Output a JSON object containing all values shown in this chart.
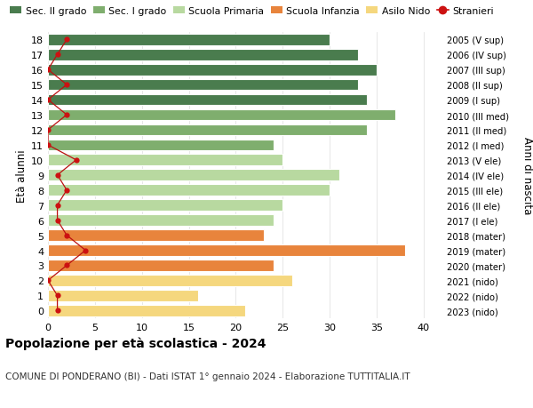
{
  "ages": [
    18,
    17,
    16,
    15,
    14,
    13,
    12,
    11,
    10,
    9,
    8,
    7,
    6,
    5,
    4,
    3,
    2,
    1,
    0
  ],
  "right_labels": [
    "2005 (V sup)",
    "2006 (IV sup)",
    "2007 (III sup)",
    "2008 (II sup)",
    "2009 (I sup)",
    "2010 (III med)",
    "2011 (II med)",
    "2012 (I med)",
    "2013 (V ele)",
    "2014 (IV ele)",
    "2015 (III ele)",
    "2016 (II ele)",
    "2017 (I ele)",
    "2018 (mater)",
    "2019 (mater)",
    "2020 (mater)",
    "2021 (nido)",
    "2022 (nido)",
    "2023 (nido)"
  ],
  "bar_values": [
    30,
    33,
    35,
    33,
    34,
    37,
    34,
    24,
    25,
    31,
    30,
    25,
    24,
    23,
    38,
    24,
    26,
    16,
    21
  ],
  "bar_colors": [
    "#4a7c4e",
    "#4a7c4e",
    "#4a7c4e",
    "#4a7c4e",
    "#4a7c4e",
    "#7fae6e",
    "#7fae6e",
    "#7fae6e",
    "#b8d9a0",
    "#b8d9a0",
    "#b8d9a0",
    "#b8d9a0",
    "#b8d9a0",
    "#e8843c",
    "#e8843c",
    "#e8843c",
    "#f5d77e",
    "#f5d77e",
    "#f5d77e"
  ],
  "stranieri_values": [
    2,
    1,
    0,
    2,
    0,
    2,
    0,
    0,
    3,
    1,
    2,
    1,
    1,
    2,
    4,
    2,
    0,
    1,
    1
  ],
  "ylabel_left": "Età alunni",
  "ylabel_right": "Anni di nascita",
  "xlim": [
    0,
    42
  ],
  "xticks": [
    0,
    5,
    10,
    15,
    20,
    25,
    30,
    35,
    40
  ],
  "title": "Popolazione per età scolastica - 2024",
  "subtitle": "COMUNE DI PONDERANO (BI) - Dati ISTAT 1° gennaio 2024 - Elaborazione TUTTITALIA.IT",
  "legend_items": [
    {
      "label": "Sec. II grado",
      "color": "#4a7c4e"
    },
    {
      "label": "Sec. I grado",
      "color": "#7fae6e"
    },
    {
      "label": "Scuola Primaria",
      "color": "#b8d9a0"
    },
    {
      "label": "Scuola Infanzia",
      "color": "#e8843c"
    },
    {
      "label": "Asilo Nido",
      "color": "#f5d77e"
    },
    {
      "label": "Stranieri",
      "color": "#cc1111"
    }
  ],
  "bg_color": "#ffffff",
  "grid_color": "#dddddd",
  "bar_height": 0.75
}
